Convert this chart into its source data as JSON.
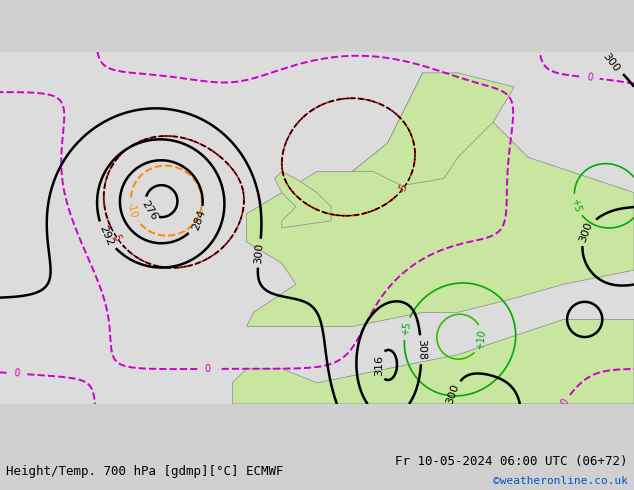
{
  "title_left": "Height/Temp. 700 hPa [gdmp][°C] ECMWF",
  "title_right": "Fr 10-05-2024 06:00 UTC (06+72)",
  "credit": "©weatheronline.co.uk",
  "bg_color": "#d0d0d0",
  "land_color": "#c8e6a0",
  "sea_color": "#dcdcdc",
  "height_color": "#000000",
  "temp_pos_colors": [
    "#00cc00",
    "#33aa00"
  ],
  "temp_neg_orange": "#ff8800",
  "temp_neg_red": "#dd0000",
  "temp_zero_magenta": "#cc00cc",
  "temp_neg5_black": "#000000",
  "font_size_label": 9,
  "font_size_title": 9,
  "figsize": [
    6.34,
    4.9
  ],
  "dpi": 100
}
